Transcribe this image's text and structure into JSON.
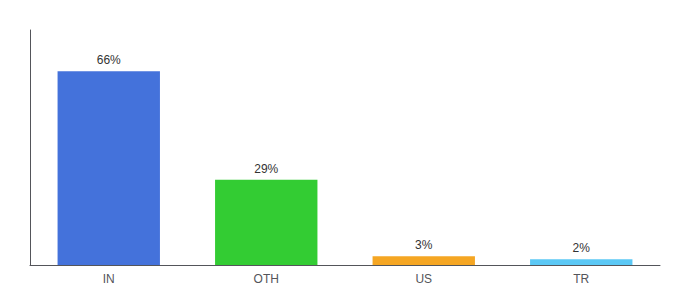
{
  "chart_data": {
    "type": "bar",
    "categories": [
      "IN",
      "OTH",
      "US",
      "TR"
    ],
    "values": [
      66,
      29,
      3,
      2
    ],
    "value_labels": [
      "66%",
      "29%",
      "3%",
      "2%"
    ],
    "colors": [
      "#4472db",
      "#33cc33",
      "#f5a623",
      "#5bc8f5"
    ],
    "ylim": [
      0,
      80
    ],
    "grid": false,
    "data_labels": true,
    "tick_labels": "x"
  }
}
